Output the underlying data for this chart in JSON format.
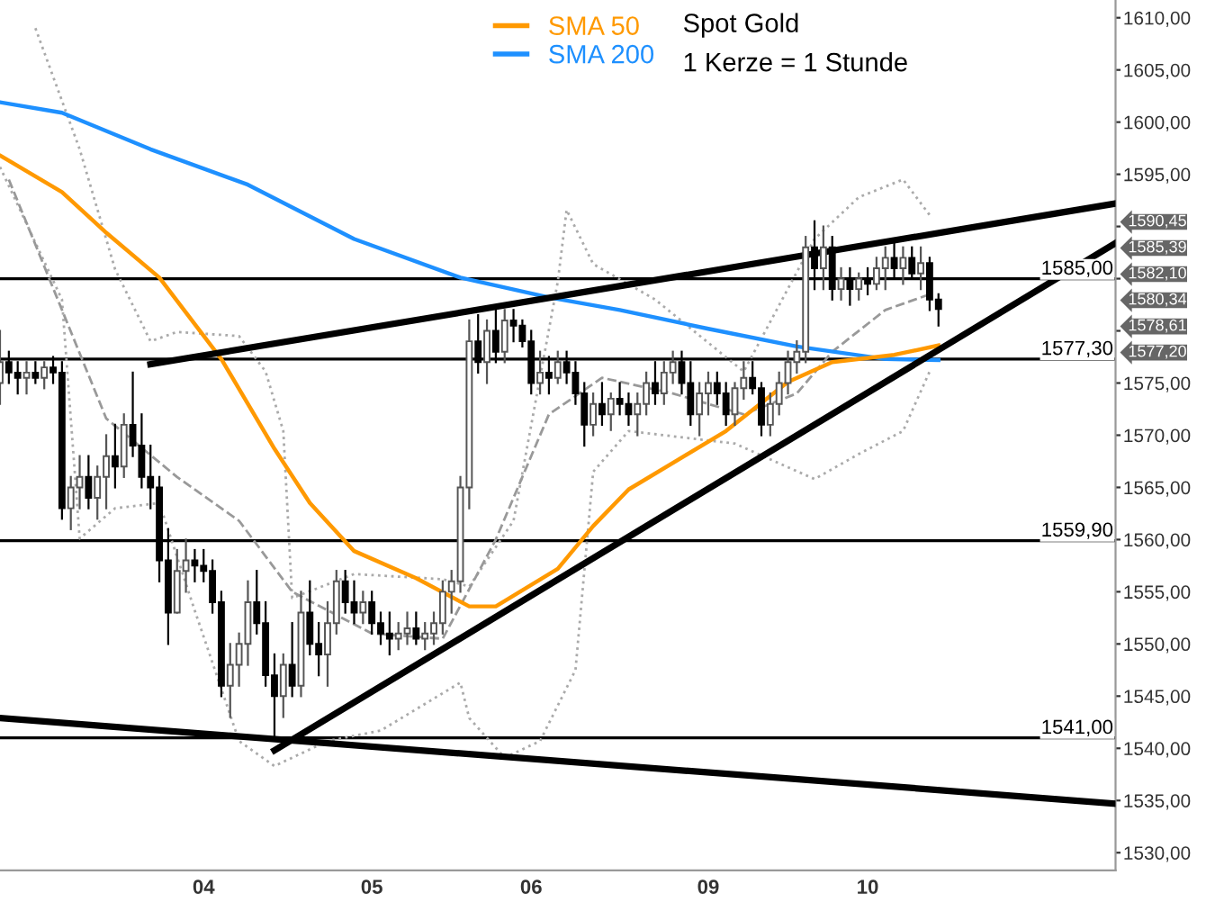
{
  "chart_data": {
    "type": "candlestick",
    "title": "Spot Gold",
    "subtitle": "1 Kerze = 1 Stunde",
    "categories": [
      null,
      null,
      null,
      null,
      null,
      null,
      null,
      null,
      null,
      null,
      null,
      null,
      null,
      null,
      null,
      null,
      null,
      null,
      null,
      null,
      null,
      null,
      null,
      "04",
      null,
      null,
      null,
      null,
      null,
      null,
      null,
      null,
      null,
      null,
      null,
      null,
      null,
      null,
      null,
      null,
      null,
      null,
      "05",
      null,
      null,
      null,
      null,
      null,
      null,
      null,
      null,
      null,
      null,
      null,
      null,
      null,
      null,
      null,
      null,
      null,
      "06",
      null,
      null,
      null,
      null,
      null,
      null,
      null,
      null,
      null,
      null,
      null,
      null,
      null,
      null,
      null,
      null,
      null,
      null,
      null,
      "09",
      null,
      null,
      null,
      null,
      null,
      null,
      null,
      null,
      null,
      null,
      null,
      null,
      null,
      null,
      null,
      null,
      null,
      "10",
      null,
      null,
      null,
      null,
      null,
      null,
      null,
      null,
      null,
      null,
      null,
      null,
      null,
      null,
      null,
      null,
      null,
      null,
      null,
      null,
      null,
      null,
      null,
      null,
      null,
      null,
      null,
      null
    ],
    "ohlc": [
      [
        1575,
        1580,
        1573,
        1577
      ],
      [
        1577,
        1578,
        1575,
        1576
      ],
      [
        1576,
        1577,
        1574,
        1575.5
      ],
      [
        1575.5,
        1577,
        1574,
        1576
      ],
      [
        1576,
        1577,
        1575,
        1575.5
      ],
      [
        1575.5,
        1577,
        1574.5,
        1576.5
      ],
      [
        1576.5,
        1577.5,
        1575,
        1576
      ],
      [
        1576,
        1577,
        1562,
        1563
      ],
      [
        1563,
        1566,
        1561,
        1565
      ],
      [
        1565,
        1568,
        1563,
        1566
      ],
      [
        1566,
        1568,
        1563,
        1564
      ],
      [
        1564,
        1567,
        1562,
        1566
      ],
      [
        1566,
        1570,
        1563,
        1568
      ],
      [
        1568,
        1571,
        1565,
        1567
      ],
      [
        1567,
        1572,
        1566,
        1571
      ],
      [
        1571,
        1576,
        1568,
        1569
      ],
      [
        1569,
        1572,
        1565,
        1566
      ],
      [
        1566,
        1569,
        1563,
        1565
      ],
      [
        1565,
        1566,
        1556,
        1558
      ],
      [
        1558,
        1561,
        1550,
        1553
      ],
      [
        1553,
        1559,
        1553,
        1557
      ],
      [
        1557,
        1560,
        1555,
        1558
      ],
      [
        1558,
        1559,
        1556,
        1557.5
      ],
      [
        1557.5,
        1559,
        1556,
        1557
      ],
      [
        1557,
        1558,
        1553,
        1554
      ],
      [
        1554,
        1555,
        1545,
        1546
      ],
      [
        1546,
        1550,
        1543,
        1548
      ],
      [
        1548,
        1551,
        1546,
        1550
      ],
      [
        1550,
        1556,
        1548,
        1554
      ],
      [
        1554,
        1557,
        1551,
        1552
      ],
      [
        1552,
        1554,
        1546,
        1547
      ],
      [
        1547,
        1549,
        1541,
        1545
      ],
      [
        1545,
        1549,
        1543,
        1548
      ],
      [
        1548,
        1552,
        1545,
        1546
      ],
      [
        1546,
        1555,
        1545,
        1553
      ],
      [
        1553,
        1556,
        1549,
        1550
      ],
      [
        1550,
        1552,
        1547,
        1549
      ],
      [
        1549,
        1554,
        1546,
        1552
      ],
      [
        1552,
        1557,
        1551,
        1556
      ],
      [
        1556,
        1557,
        1553,
        1554
      ],
      [
        1554,
        1556,
        1552,
        1553
      ],
      [
        1553,
        1555,
        1552,
        1554
      ],
      [
        1554,
        1555,
        1551,
        1552
      ],
      [
        1552,
        1553,
        1550,
        1551
      ],
      [
        1551,
        1553,
        1549,
        1550.5
      ],
      [
        1550.5,
        1552,
        1549.5,
        1551
      ],
      [
        1551,
        1553,
        1550,
        1551.5
      ],
      [
        1551.5,
        1553,
        1550,
        1550.5
      ],
      [
        1550.5,
        1552,
        1549.5,
        1551
      ],
      [
        1551,
        1553,
        1550,
        1552
      ],
      [
        1552,
        1556,
        1551,
        1555
      ],
      [
        1555,
        1557,
        1553,
        1556
      ],
      [
        1556,
        1566,
        1555,
        1565
      ],
      [
        1565,
        1581,
        1563,
        1579
      ],
      [
        1579,
        1581.5,
        1576,
        1577
      ],
      [
        1577,
        1581,
        1575,
        1580
      ],
      [
        1580,
        1582,
        1577,
        1578
      ],
      [
        1578,
        1582,
        1577,
        1581
      ],
      [
        1581,
        1582,
        1579,
        1580.5
      ],
      [
        1580.5,
        1581,
        1578.5,
        1579
      ],
      [
        1579,
        1580,
        1574,
        1575
      ],
      [
        1575,
        1578,
        1574,
        1576
      ],
      [
        1576,
        1577.5,
        1574,
        1575.5
      ],
      [
        1575.5,
        1578,
        1575,
        1577
      ],
      [
        1577,
        1578,
        1575,
        1576
      ],
      [
        1576,
        1577,
        1573,
        1574
      ],
      [
        1574,
        1575,
        1569,
        1571
      ],
      [
        1571,
        1574,
        1570,
        1573
      ],
      [
        1573,
        1575,
        1571,
        1572
      ],
      [
        1572,
        1574,
        1570.5,
        1573.5
      ],
      [
        1573.5,
        1575,
        1572,
        1573
      ],
      [
        1573,
        1574,
        1571,
        1572
      ],
      [
        1572,
        1574,
        1570,
        1573
      ],
      [
        1573,
        1576,
        1572,
        1575
      ],
      [
        1575,
        1577,
        1573,
        1574
      ],
      [
        1574,
        1577,
        1573,
        1576
      ],
      [
        1576,
        1578,
        1575,
        1577
      ],
      [
        1577,
        1578,
        1574,
        1575
      ],
      [
        1575,
        1577,
        1571,
        1572
      ],
      [
        1572,
        1575,
        1570,
        1574
      ],
      [
        1574,
        1576,
        1572,
        1575
      ],
      [
        1575,
        1576,
        1573,
        1574
      ],
      [
        1574,
        1575,
        1571,
        1572
      ],
      [
        1572,
        1575,
        1571,
        1574.5
      ],
      [
        1574.5,
        1577,
        1573.5,
        1575.5
      ],
      [
        1575.5,
        1577,
        1574,
        1574.5
      ],
      [
        1574.5,
        1575,
        1570,
        1571
      ],
      [
        1571,
        1574,
        1570,
        1573
      ],
      [
        1573,
        1576,
        1572,
        1575
      ],
      [
        1575,
        1578,
        1574,
        1577
      ],
      [
        1577,
        1579,
        1576,
        1578
      ],
      [
        1578,
        1589,
        1577,
        1588
      ],
      [
        1588,
        1590.5,
        1584,
        1586
      ],
      [
        1586,
        1590,
        1584,
        1588
      ],
      [
        1588,
        1589,
        1583,
        1584
      ],
      [
        1584,
        1586,
        1583,
        1585
      ],
      [
        1585,
        1586,
        1582.5,
        1584
      ],
      [
        1584,
        1585.5,
        1583,
        1585
      ],
      [
        1585,
        1586,
        1583.5,
        1584.5
      ],
      [
        1584.5,
        1587,
        1584,
        1586
      ],
      [
        1586,
        1588,
        1584,
        1587
      ],
      [
        1587,
        1588.5,
        1585,
        1586
      ],
      [
        1586,
        1588,
        1584.5,
        1587
      ],
      [
        1587,
        1588,
        1585,
        1585.5
      ],
      [
        1585.5,
        1588,
        1584,
        1586.5
      ],
      [
        1586.5,
        1587,
        1582,
        1583
      ],
      [
        1583,
        1583.5,
        1580.5,
        1582.1
      ],
      null,
      null,
      null,
      null,
      null,
      null,
      null,
      null,
      null,
      null,
      null,
      null,
      null,
      null,
      null,
      null,
      null,
      null,
      null,
      null
    ],
    "series": [
      {
        "type": "line",
        "color": "#aaaaaa",
        "line_style": "dotted",
        "values": [
          null,
          null,
          null,
          null,
          1609,
          null,
          null,
          null,
          null,
          1597.4,
          null,
          null,
          null,
          1585.9,
          null,
          null,
          null,
          1579,
          null,
          null,
          1579.9,
          null,
          null,
          null,
          null,
          null,
          null,
          1579.5,
          null,
          null,
          1576.1,
          null,
          1570.4,
          1554.4,
          null,
          null,
          null,
          null,
          null,
          null,
          1556.7,
          null,
          null,
          null,
          null,
          null,
          null,
          null,
          null,
          null,
          1556.2,
          null,
          null,
          1555.5,
          null,
          null,
          null,
          null,
          1561.8,
          null,
          null,
          null,
          null,
          1584.7,
          1591.6,
          null,
          null,
          1586.4,
          null,
          null,
          null,
          null,
          null,
          null,
          1583,
          null,
          null,
          null,
          null,
          null,
          null,
          null,
          null,
          null,
          1576.1,
          null,
          null,
          null,
          null,
          null,
          null,
          null,
          1588.8,
          null,
          null,
          null,
          null,
          1592.8,
          null,
          null,
          null,
          null,
          1594.5,
          null,
          null,
          1591.1,
          null,
          null,
          null,
          null,
          null,
          null,
          null,
          null,
          null,
          null,
          null,
          null,
          null,
          null,
          null,
          null,
          null,
          null,
          null,
          null,
          null
        ]
      },
      {
        "type": "line",
        "color": "#aaaaaa",
        "line_style": "dotted",
        "values": [
          1595.7,
          null,
          null,
          null,
          null,
          null,
          null,
          1583,
          null,
          1560.1,
          null,
          null,
          null,
          1563,
          null,
          null,
          null,
          null,
          1563.5,
          null,
          null,
          null,
          1553.2,
          null,
          null,
          null,
          null,
          1540.7,
          null,
          null,
          null,
          1538.3,
          null,
          null,
          null,
          null,
          null,
          1540.7,
          null,
          null,
          null,
          null,
          null,
          1541.7,
          null,
          null,
          null,
          null,
          null,
          null,
          null,
          null,
          1546.3,
          1542.9,
          null,
          null,
          null,
          1539.1,
          null,
          null,
          null,
          1540.7,
          null,
          null,
          null,
          1547.5,
          null,
          1566.5,
          null,
          null,
          null,
          1570.4,
          null,
          null,
          null,
          null,
          null,
          null,
          null,
          null,
          null,
          null,
          null,
          1569.2,
          null,
          null,
          null,
          null,
          null,
          null,
          null,
          null,
          1565.8,
          null,
          null,
          null,
          null,
          1568.2,
          null,
          null,
          null,
          null,
          1570.4,
          null,
          null,
          1576.1,
          null,
          null,
          null,
          null,
          null,
          null,
          null,
          null,
          null,
          null,
          null,
          null,
          null,
          null,
          null,
          null,
          null,
          null,
          null,
          null,
          null
        ]
      },
      {
        "type": "line",
        "color": "#999999",
        "line_style": "dashed",
        "values": [
          null,
          1594.5,
          null,
          null,
          null,
          null,
          null,
          null,
          null,
          null,
          null,
          null,
          1571.6,
          null,
          null,
          null,
          null,
          null,
          null,
          null,
          1566,
          null,
          null,
          null,
          null,
          null,
          null,
          1561.8,
          null,
          null,
          null,
          null,
          null,
          1555,
          null,
          null,
          null,
          null,
          null,
          null,
          null,
          null,
          1551,
          null,
          null,
          null,
          null,
          null,
          null,
          null,
          1550.5,
          null,
          null,
          null,
          null,
          null,
          1560,
          null,
          null,
          null,
          null,
          null,
          1572,
          null,
          null,
          null,
          null,
          null,
          1575.5,
          null,
          null,
          null,
          null,
          null,
          null,
          null,
          1574,
          null,
          null,
          null,
          null,
          null,
          null,
          null,
          1572,
          null,
          null,
          null,
          null,
          null,
          1574,
          null,
          null,
          null,
          1578,
          null,
          null,
          null,
          null,
          null,
          1582,
          null,
          null,
          null,
          null,
          1583.5,
          null,
          null,
          null,
          null,
          null,
          null,
          null,
          null,
          null,
          null,
          null,
          null,
          null,
          null,
          null,
          null,
          null,
          null,
          null,
          null,
          null
        ]
      },
      {
        "type": "line",
        "name": "SMA 200",
        "color": "#1e90ff",
        "line_style": "solid",
        "values": [
          1601.9,
          null,
          null,
          null,
          null,
          null,
          null,
          1600.9,
          null,
          null,
          null,
          null,
          null,
          null,
          null,
          null,
          null,
          1597.4,
          null,
          null,
          null,
          null,
          null,
          null,
          null,
          null,
          null,
          null,
          1594,
          null,
          null,
          null,
          null,
          null,
          null,
          null,
          null,
          null,
          null,
          null,
          1588.8,
          null,
          null,
          null,
          null,
          null,
          null,
          null,
          null,
          null,
          null,
          null,
          1585.1,
          null,
          null,
          null,
          null,
          null,
          null,
          null,
          null,
          null,
          1583.2,
          null,
          null,
          null,
          null,
          null,
          null,
          null,
          1582,
          null,
          null,
          null,
          null,
          null,
          null,
          null,
          null,
          null,
          1580.2,
          null,
          null,
          null,
          null,
          null,
          null,
          null,
          null,
          null,
          1578.5,
          null,
          null,
          null,
          null,
          null,
          null,
          null,
          null,
          null,
          1577.3,
          null,
          null,
          null,
          null,
          null,
          1577.2,
          null,
          null,
          null,
          null,
          null,
          null,
          null,
          null,
          null,
          null,
          null,
          null,
          null,
          null,
          null,
          null,
          null,
          null,
          null,
          null
        ]
      },
      {
        "type": "line",
        "name": "SMA 50",
        "color": "#ff9900",
        "line_style": "solid",
        "values": [
          1596.8,
          null,
          null,
          null,
          null,
          null,
          null,
          1593.3,
          null,
          null,
          null,
          null,
          1589.4,
          null,
          null,
          null,
          null,
          null,
          1585.1,
          null,
          null,
          null,
          null,
          null,
          null,
          1577.3,
          null,
          null,
          null,
          null,
          null,
          1568.7,
          null,
          null,
          null,
          1563.5,
          null,
          null,
          null,
          null,
          1558.9,
          null,
          null,
          null,
          null,
          null,
          null,
          1556.3,
          null,
          null,
          null,
          null,
          null,
          1553.6,
          null,
          null,
          1553.6,
          null,
          null,
          null,
          null,
          null,
          null,
          1557.2,
          null,
          null,
          null,
          1561.3,
          null,
          null,
          null,
          1564.8,
          null,
          null,
          null,
          null,
          null,
          null,
          null,
          null,
          null,
          null,
          1570.4,
          null,
          null,
          null,
          null,
          null,
          null,
          1575.1,
          null,
          null,
          null,
          null,
          1577.0,
          null,
          null,
          null,
          null,
          null,
          null,
          1577.7,
          null,
          null,
          null,
          null,
          1578.6,
          null,
          null,
          null,
          null,
          null,
          null,
          null,
          null,
          null,
          null,
          null,
          null,
          null,
          null,
          null,
          null,
          null,
          null,
          null,
          null
        ]
      },
      {
        "type": "line",
        "color": "#000000",
        "line_style": "solid",
        "values": [
          null,
          null,
          null,
          null,
          null,
          null,
          null,
          null,
          null,
          null,
          null,
          null,
          null,
          null,
          null,
          null,
          null,
          1576.8,
          null,
          null,
          null,
          null,
          null,
          null,
          null,
          null,
          null,
          null,
          null,
          null,
          null,
          null,
          null,
          null,
          null,
          null,
          null,
          null,
          null,
          null,
          null,
          null,
          null,
          null,
          null,
          null,
          null,
          null,
          null,
          null,
          null,
          null,
          null,
          null,
          null,
          null,
          null,
          null,
          null,
          null,
          null,
          null,
          null,
          null,
          null,
          null,
          null,
          null,
          null,
          null,
          null,
          null,
          null,
          null,
          null,
          null,
          null,
          null,
          null,
          null,
          null,
          null,
          null,
          null,
          null,
          null,
          null,
          null,
          null,
          null,
          null,
          null,
          null,
          null,
          null,
          null,
          null,
          null,
          null,
          null,
          null,
          null,
          null,
          null,
          null,
          null,
          null,
          null,
          null,
          null,
          null,
          null,
          null,
          null,
          null,
          null,
          null,
          null,
          null,
          null,
          null,
          null,
          null,
          null,
          null,
          null,
          1592.2
        ]
      },
      {
        "type": "line",
        "color": "#000000",
        "line_style": "solid",
        "values": [
          null,
          null,
          null,
          null,
          null,
          null,
          null,
          null,
          null,
          null,
          null,
          null,
          null,
          null,
          null,
          null,
          null,
          null,
          null,
          null,
          null,
          null,
          null,
          null,
          null,
          null,
          null,
          null,
          null,
          null,
          null,
          1539.8,
          null,
          null,
          null,
          null,
          null,
          null,
          null,
          null,
          null,
          null,
          null,
          null,
          null,
          null,
          null,
          null,
          null,
          null,
          null,
          null,
          null,
          null,
          null,
          null,
          null,
          null,
          null,
          null,
          null,
          null,
          null,
          null,
          null,
          null,
          null,
          null,
          null,
          null,
          null,
          null,
          null,
          null,
          null,
          null,
          null,
          null,
          null,
          null,
          null,
          null,
          null,
          null,
          null,
          null,
          null,
          null,
          null,
          null,
          null,
          null,
          null,
          null,
          null,
          null,
          null,
          null,
          null,
          null,
          null,
          null,
          null,
          null,
          null,
          null,
          null,
          null,
          null,
          null,
          null,
          null,
          null,
          null,
          null,
          null,
          null,
          null,
          null,
          null,
          null,
          null,
          null,
          null,
          null,
          null,
          1588.4
        ]
      },
      {
        "type": "line",
        "color": "#000000",
        "line_style": "solid",
        "values": [
          1542.9,
          null,
          null,
          null,
          null,
          null,
          null,
          null,
          null,
          null,
          null,
          null,
          null,
          null,
          null,
          null,
          null,
          null,
          null,
          null,
          null,
          null,
          null,
          null,
          null,
          null,
          null,
          null,
          null,
          null,
          null,
          null,
          null,
          null,
          null,
          null,
          null,
          null,
          null,
          null,
          null,
          null,
          null,
          null,
          null,
          null,
          null,
          null,
          null,
          null,
          null,
          null,
          null,
          null,
          null,
          null,
          null,
          null,
          null,
          null,
          null,
          null,
          null,
          null,
          null,
          null,
          null,
          null,
          null,
          null,
          null,
          null,
          null,
          null,
          null,
          null,
          null,
          null,
          null,
          null,
          null,
          null,
          null,
          null,
          null,
          null,
          null,
          null,
          null,
          null,
          null,
          null,
          null,
          null,
          null,
          null,
          null,
          null,
          null,
          null,
          null,
          null,
          null,
          null,
          null,
          null,
          null,
          null,
          null,
          null,
          null,
          null,
          null,
          null,
          null,
          null,
          null,
          null,
          null,
          null,
          null,
          null,
          null,
          null,
          null,
          null,
          1534.7
        ]
      }
    ],
    "ref_lines": [
      {
        "axis": "y",
        "value": 1585.0,
        "label": "1585,00"
      },
      {
        "axis": "y",
        "value": 1577.3,
        "label": "1577,30"
      },
      {
        "axis": "y",
        "value": 1559.9,
        "label": "1559,90"
      },
      {
        "axis": "y",
        "value": 1541.0,
        "label": "1541,00"
      }
    ],
    "annotations": [
      "1590,45",
      "1585,39",
      "1582,10",
      "1580,34",
      "1578,61",
      "1577,20"
    ],
    "ylim": [
      1528.3,
      1611.7
    ],
    "yticks": [
      {
        "value": 1530,
        "label": "1530,00"
      },
      {
        "value": 1535,
        "label": "1535,00"
      },
      {
        "value": 1540,
        "label": "1540,00"
      },
      {
        "value": 1545,
        "label": "1545,00"
      },
      {
        "value": 1550,
        "label": "1550,00"
      },
      {
        "value": 1555,
        "label": "1555,00"
      },
      {
        "value": 1560,
        "label": "1560,00"
      },
      {
        "value": 1565,
        "label": "1565,00"
      },
      {
        "value": 1570,
        "label": "1570,00"
      },
      {
        "value": 1575,
        "label": "1575,00"
      },
      {
        "value": 1580,
        "label": null
      },
      {
        "value": 1585,
        "label": null
      },
      {
        "value": 1590,
        "label": null
      },
      {
        "value": 1595,
        "label": "1595,00"
      },
      {
        "value": 1600,
        "label": "1600,00"
      },
      {
        "value": 1605,
        "label": "1605,00"
      },
      {
        "value": 1610,
        "label": "1610,00"
      }
    ],
    "legend": "top"
  }
}
